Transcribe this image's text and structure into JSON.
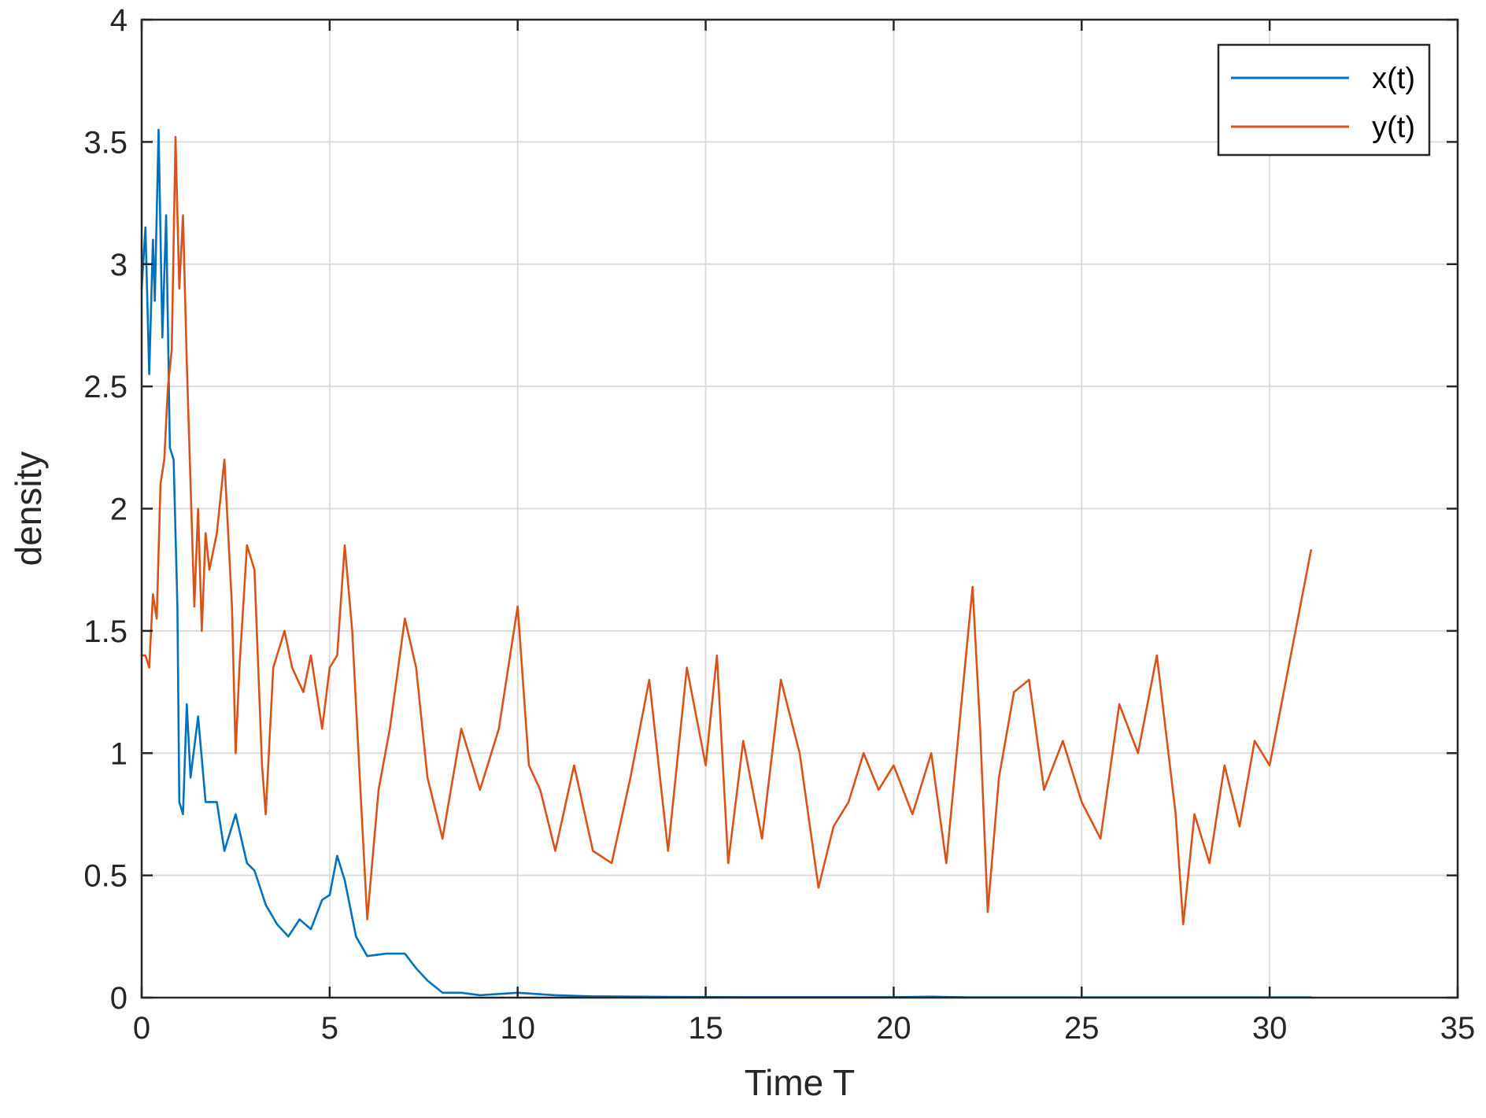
{
  "chart_data": {
    "type": "line",
    "title": "",
    "xlabel": "Time T",
    "ylabel": "density",
    "xlim": [
      0,
      35
    ],
    "ylim": [
      0,
      4
    ],
    "xticks": [
      0,
      5,
      10,
      15,
      20,
      25,
      30,
      35
    ],
    "xtick_labels": [
      "0",
      "5",
      "10",
      "15",
      "20",
      "25",
      "30",
      "35"
    ],
    "yticks": [
      0,
      0.5,
      1,
      1.5,
      2,
      2.5,
      3,
      3.5,
      4
    ],
    "ytick_labels": [
      "0",
      "0.5",
      "1",
      "1.5",
      "2",
      "2.5",
      "3",
      "3.5",
      "4"
    ],
    "grid": true,
    "legend_position": "top-right",
    "series": [
      {
        "name": "x(t)",
        "color": "#0072BD",
        "x": [
          0,
          0.1,
          0.2,
          0.3,
          0.35,
          0.45,
          0.55,
          0.65,
          0.75,
          0.85,
          0.95,
          1.0,
          1.1,
          1.2,
          1.3,
          1.5,
          1.7,
          2.0,
          2.2,
          2.5,
          2.8,
          3.0,
          3.3,
          3.6,
          3.9,
          4.2,
          4.5,
          4.8,
          5.0,
          5.2,
          5.4,
          5.7,
          6.0,
          6.5,
          7.0,
          7.3,
          7.6,
          8.0,
          8.5,
          9.0,
          10.0,
          11.0,
          12.0,
          14.0,
          16.0,
          20.0,
          21.0,
          22.0,
          25.0,
          30.0,
          31.1
        ],
        "y": [
          2.9,
          3.15,
          2.55,
          3.1,
          2.85,
          3.55,
          2.7,
          3.2,
          2.25,
          2.2,
          1.6,
          0.8,
          0.75,
          1.2,
          0.9,
          1.15,
          0.8,
          0.8,
          0.6,
          0.75,
          0.55,
          0.52,
          0.38,
          0.3,
          0.25,
          0.32,
          0.28,
          0.4,
          0.42,
          0.58,
          0.48,
          0.25,
          0.17,
          0.18,
          0.18,
          0.12,
          0.07,
          0.02,
          0.02,
          0.01,
          0.02,
          0.01,
          0.005,
          0.003,
          0.002,
          0.002,
          0.004,
          0.001,
          0.001,
          0.001,
          0.001
        ]
      },
      {
        "name": "y(t)",
        "color": "#D95319",
        "x": [
          0,
          0.1,
          0.2,
          0.3,
          0.4,
          0.5,
          0.6,
          0.7,
          0.8,
          0.9,
          1.0,
          1.1,
          1.2,
          1.3,
          1.4,
          1.5,
          1.6,
          1.7,
          1.8,
          2.0,
          2.2,
          2.4,
          2.5,
          2.6,
          2.8,
          3.0,
          3.2,
          3.3,
          3.5,
          3.8,
          4.0,
          4.3,
          4.5,
          4.8,
          5.0,
          5.2,
          5.4,
          5.6,
          5.8,
          6.0,
          6.3,
          6.6,
          7.0,
          7.3,
          7.6,
          8.0,
          8.5,
          9.0,
          9.5,
          10.0,
          10.3,
          10.6,
          11.0,
          11.5,
          12.0,
          12.5,
          13.0,
          13.5,
          14.0,
          14.5,
          15.0,
          15.3,
          15.6,
          16.0,
          16.5,
          17.0,
          17.5,
          18.0,
          18.4,
          18.8,
          19.2,
          19.6,
          20.0,
          20.5,
          21.0,
          21.4,
          21.8,
          22.1,
          22.3,
          22.5,
          22.8,
          23.2,
          23.6,
          24.0,
          24.5,
          25.0,
          25.5,
          26.0,
          26.5,
          27.0,
          27.5,
          27.7,
          28.0,
          28.4,
          28.8,
          29.2,
          29.6,
          30.0,
          31.1
        ],
        "y": [
          1.4,
          1.4,
          1.35,
          1.65,
          1.55,
          2.1,
          2.2,
          2.5,
          2.65,
          3.52,
          2.9,
          3.2,
          2.6,
          2.1,
          1.6,
          2.0,
          1.5,
          1.9,
          1.75,
          1.9,
          2.2,
          1.6,
          1.0,
          1.35,
          1.85,
          1.75,
          0.95,
          0.75,
          1.35,
          1.5,
          1.35,
          1.25,
          1.4,
          1.1,
          1.35,
          1.4,
          1.85,
          1.5,
          0.9,
          0.32,
          0.85,
          1.1,
          1.55,
          1.35,
          0.9,
          0.65,
          1.1,
          0.85,
          1.1,
          1.6,
          0.95,
          0.85,
          0.6,
          0.95,
          0.6,
          0.55,
          0.9,
          1.3,
          0.6,
          1.35,
          0.95,
          1.4,
          0.55,
          1.05,
          0.65,
          1.3,
          1.0,
          0.45,
          0.7,
          0.8,
          1.0,
          0.85,
          0.95,
          0.75,
          1.0,
          0.55,
          1.2,
          1.68,
          1.1,
          0.35,
          0.9,
          1.25,
          1.3,
          0.85,
          1.05,
          0.8,
          0.65,
          1.2,
          1.0,
          1.4,
          0.75,
          0.3,
          0.75,
          0.55,
          0.95,
          0.7,
          1.05,
          0.95,
          1.83
        ]
      }
    ]
  }
}
